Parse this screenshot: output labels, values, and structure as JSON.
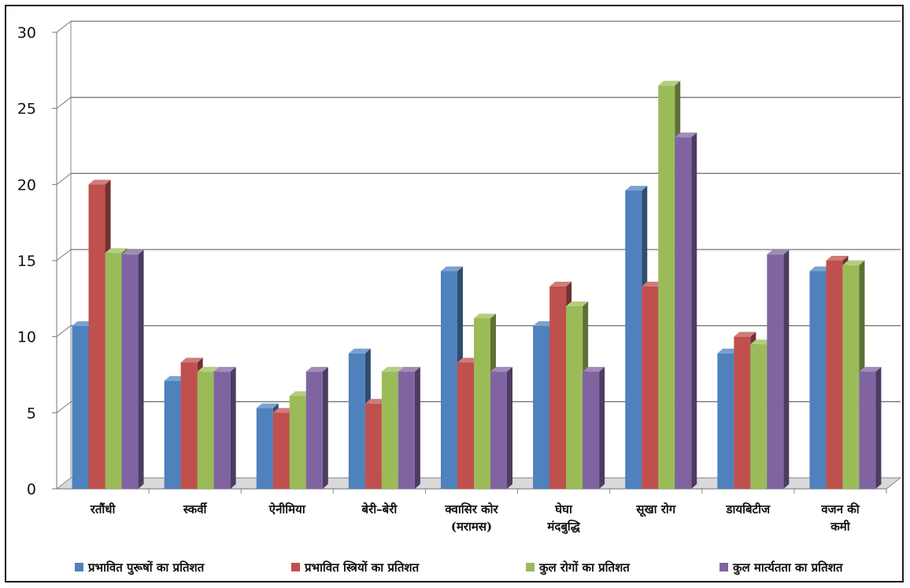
{
  "chart_data": {
    "type": "bar",
    "categories": [
      [
        "रतौंधी"
      ],
      [
        "स्कर्वी"
      ],
      [
        "ऐनीमिया"
      ],
      [
        "बेरी–बेरी"
      ],
      [
        "क्वासिर कोर",
        "(मरामस)"
      ],
      [
        "घेघा",
        "मंदबुद्धि"
      ],
      [
        "सूखा रोग"
      ],
      [
        "डायबिटीज"
      ],
      [
        "वजन की",
        "कमी"
      ]
    ],
    "series": [
      {
        "name": "प्रभावित पुरूषों का प्रतिशत",
        "color": "#4f81bd",
        "values": [
          10.7,
          7.1,
          5.3,
          8.9,
          14.3,
          10.7,
          19.6,
          8.9,
          14.3
        ]
      },
      {
        "name": "प्रभावित स्त्रियों का प्रतिशत",
        "color": "#c0504d",
        "values": [
          20.0,
          8.3,
          5.0,
          5.6,
          8.3,
          13.3,
          13.3,
          10.0,
          15.0
        ]
      },
      {
        "name": "कुल रोगों का प्रतिशत",
        "color": "#9bbb59",
        "values": [
          15.5,
          7.7,
          6.1,
          7.7,
          11.2,
          12.0,
          26.5,
          9.5,
          14.7
        ]
      },
      {
        "name": "कुल मार्त्यतता का प्रतिशत",
        "color": "#8064a2",
        "values": [
          15.4,
          7.7,
          7.7,
          7.7,
          7.7,
          7.7,
          23.1,
          15.4,
          7.7
        ]
      }
    ],
    "yticks": [
      "0",
      "5",
      "10",
      "15",
      "20",
      "25",
      "30"
    ],
    "ylim": [
      0,
      30
    ],
    "grid": true,
    "legend": "bottom"
  }
}
